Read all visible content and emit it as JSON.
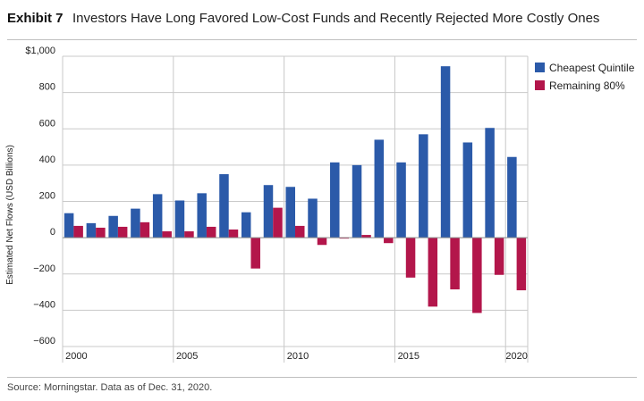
{
  "header": {
    "exhibit_label": "Exhibit 7",
    "title": "Investors Have Long Favored Low-Cost Funds and Recently Rejected More Costly Ones"
  },
  "footer": {
    "source": "Source: Morningstar. Data as of Dec. 31, 2020."
  },
  "colors": {
    "cheapest": "#2b5aa9",
    "remaining": "#b3164b",
    "grid": "#c9c9c9",
    "zero_line": "#8a8a8a"
  },
  "chart_data": {
    "type": "bar",
    "title": "Investors Have Long Favored Low-Cost Funds and Recently Rejected More Costly Ones",
    "xlabel": "",
    "ylabel": "Estimated Net Flows (USD Billions)",
    "ylim": [
      -600,
      1000
    ],
    "y_ticks": [
      {
        "value": 1000,
        "label": "$1,000"
      },
      {
        "value": 800,
        "label": "800"
      },
      {
        "value": 600,
        "label": "600"
      },
      {
        "value": 400,
        "label": "400"
      },
      {
        "value": 200,
        "label": "200"
      },
      {
        "value": 0,
        "label": "0"
      },
      {
        "value": -200,
        "label": "−200"
      },
      {
        "value": -400,
        "label": "−400"
      },
      {
        "value": -600,
        "label": "−600"
      }
    ],
    "x_tick_labels": [
      "2000",
      "2005",
      "2010",
      "2015",
      "2020"
    ],
    "x_gridlines_at": [
      2000,
      2005,
      2010,
      2015,
      2020
    ],
    "grid": true,
    "legend_position": "top-right",
    "categories": [
      2000,
      2001,
      2002,
      2003,
      2004,
      2005,
      2006,
      2007,
      2008,
      2009,
      2010,
      2011,
      2012,
      2013,
      2014,
      2015,
      2016,
      2017,
      2018,
      2019,
      2020
    ],
    "series": [
      {
        "name": "Cheapest Quintile",
        "values": [
          135,
          80,
          120,
          160,
          240,
          205,
          245,
          350,
          140,
          290,
          280,
          215,
          415,
          400,
          540,
          415,
          570,
          945,
          525,
          605,
          445
        ]
      },
      {
        "name": "Remaining 80%",
        "values": [
          65,
          55,
          60,
          85,
          35,
          35,
          60,
          45,
          -170,
          165,
          65,
          -40,
          -5,
          15,
          -30,
          -220,
          -380,
          -285,
          -415,
          -205,
          -290
        ]
      }
    ]
  }
}
